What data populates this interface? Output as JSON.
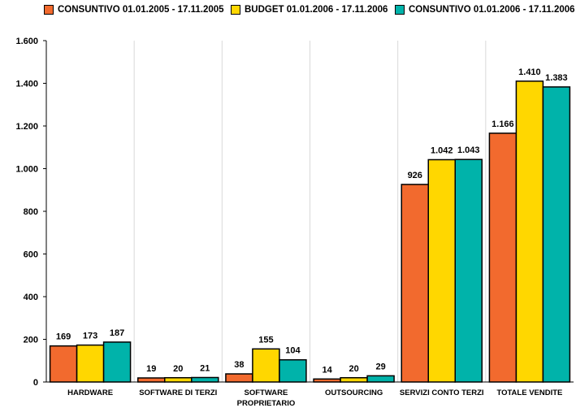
{
  "colors": {
    "orange": "#f26a2e",
    "yellow": "#ffd700",
    "teal": "#00b3aa",
    "grid": "#d9d9d9",
    "axis": "#000000"
  },
  "legend": [
    {
      "label": "CONSUNTIVO 01.01.2005 - 17.11.2005"
    },
    {
      "label": "BUDGET 01.01.2006 - 17.11.2006"
    },
    {
      "label": "CONSUNTIVO 01.01.2006 - 17.11.2006"
    }
  ],
  "chart_data": {
    "type": "bar",
    "categories": [
      [
        "HARDWARE"
      ],
      [
        "SOFTWARE DI TERZI"
      ],
      [
        "SOFTWARE",
        "PROPRIETARIO"
      ],
      [
        "OUTSOURCING"
      ],
      [
        "SERVIZI CONTO TERZI"
      ],
      [
        "TOTALE VENDITE"
      ]
    ],
    "series": [
      {
        "name": "CONSUNTIVO 01.01.2005 - 17.11.2005",
        "color": "#f26a2e",
        "values": [
          169,
          19,
          38,
          14,
          926,
          1166
        ],
        "labels": [
          "169",
          "19",
          "38",
          "14",
          "926",
          "1.166"
        ]
      },
      {
        "name": "BUDGET 01.01.2006 - 17.11.2006",
        "color": "#ffd700",
        "values": [
          173,
          20,
          155,
          20,
          1042,
          1410
        ],
        "labels": [
          "173",
          "20",
          "155",
          "20",
          "1.042",
          "1.410"
        ]
      },
      {
        "name": "CONSUNTIVO 01.01.2006 - 17.11.2006",
        "color": "#00b3aa",
        "values": [
          187,
          21,
          104,
          29,
          1043,
          1383
        ],
        "labels": [
          "187",
          "21",
          "104",
          "29",
          "1.043",
          "1.383"
        ]
      }
    ],
    "yticks": [
      0,
      200,
      400,
      600,
      800,
      1000,
      1200,
      1400,
      1600
    ],
    "ytick_labels": [
      "0",
      "200",
      "400",
      "600",
      "800",
      "1.000",
      "1.200",
      "1.400",
      "1.600"
    ],
    "ylim": [
      0,
      1600
    ],
    "grid": "vertical category separators",
    "legend_position": "top",
    "title": "",
    "xlabel": "",
    "ylabel": ""
  }
}
